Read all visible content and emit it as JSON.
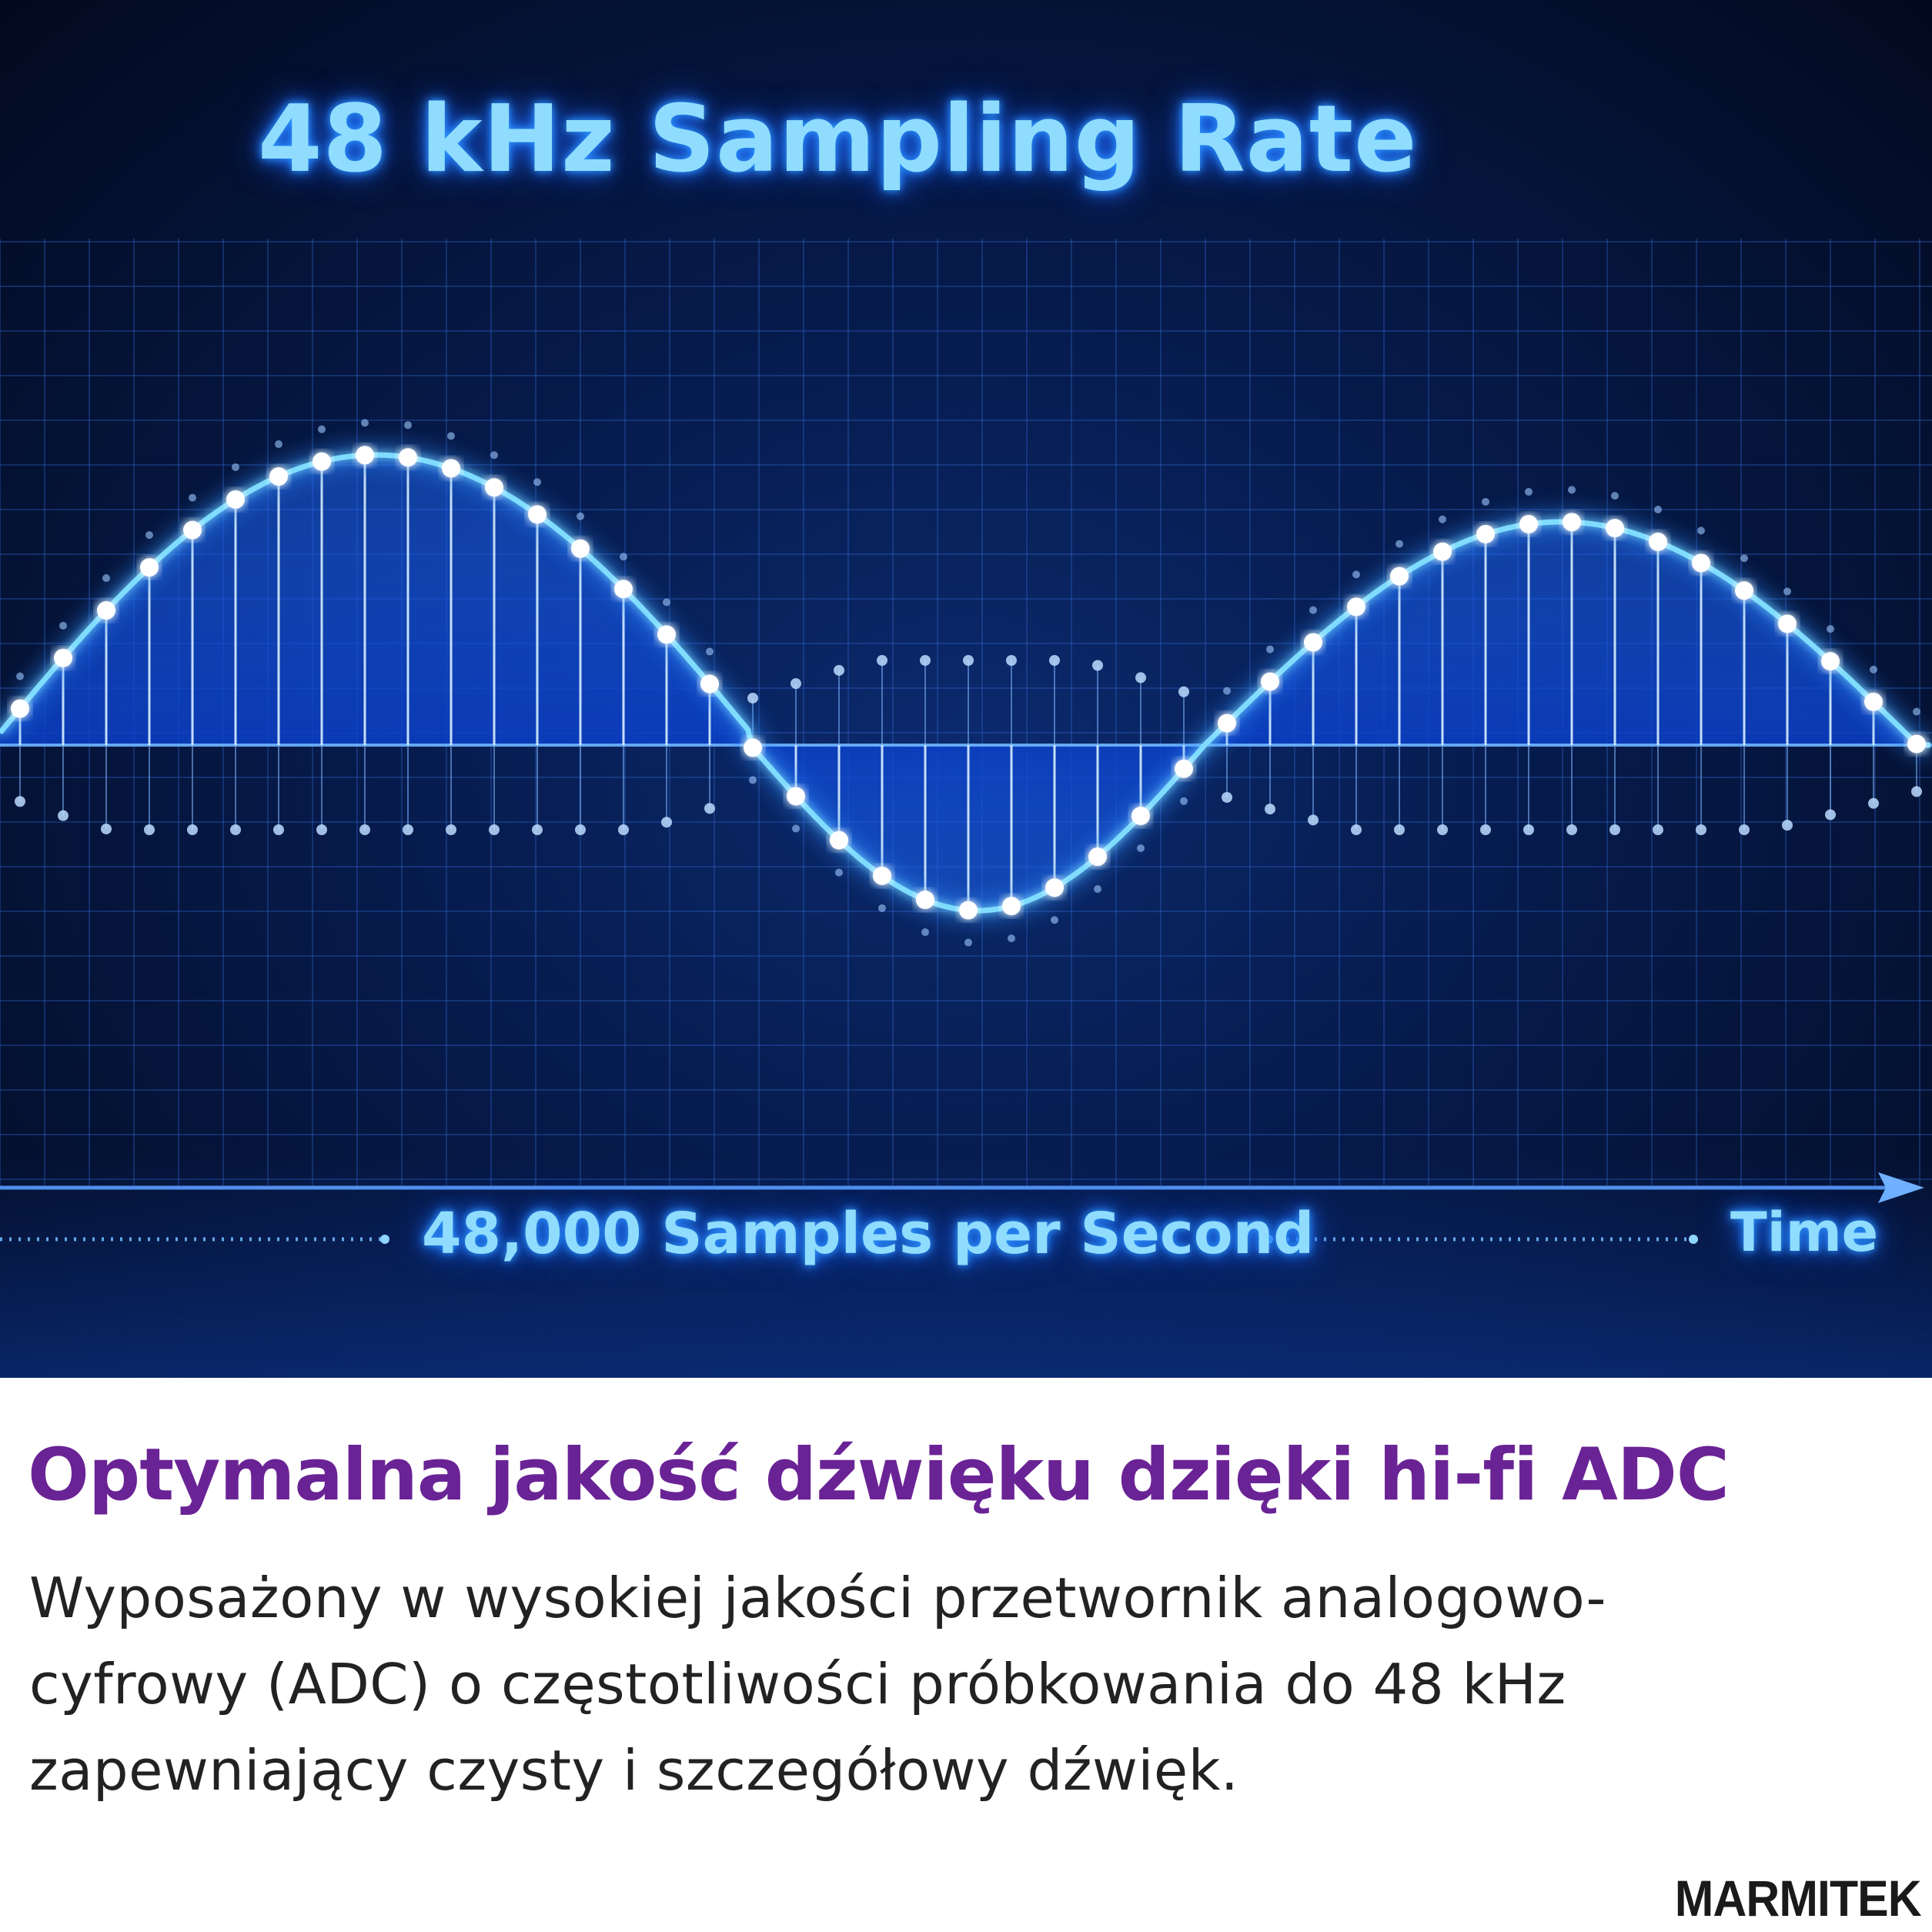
{
  "graphic": {
    "title": "48 kHz Sampling Rate",
    "axis_caption": "48,000 Samples per Second",
    "axis_unit": "Time"
  },
  "headline": "Optymalna jakość dźwięku dzięki hi-fi ADC",
  "body": "Wyposażony w wysokiej jakości przetwornik analogowo-cyfrowy (ADC) o częstotliwości próbkowania do 48 kHz zapewniający czysty i szczegółowy dźwięk.",
  "brand": "MARMITEK",
  "colors": {
    "headline": "#6a2395",
    "wave": "#58c8ff",
    "background": "#061a4a"
  }
}
